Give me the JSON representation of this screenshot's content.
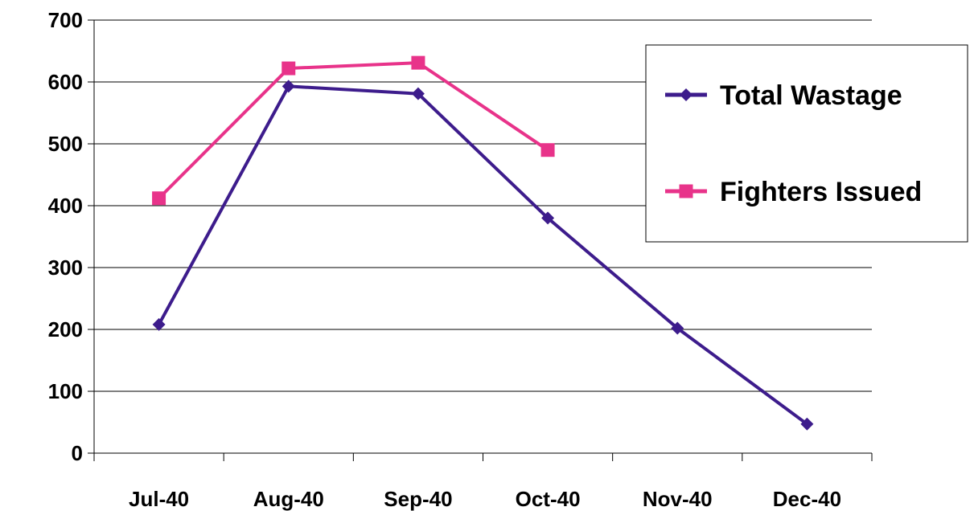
{
  "chart_data": {
    "type": "line",
    "categories": [
      "Jul-40",
      "Aug-40",
      "Sep-40",
      "Oct-40",
      "Nov-40",
      "Dec-40"
    ],
    "series": [
      {
        "name": "Total Wastage",
        "values": [
          208,
          593,
          581,
          380,
          202,
          47
        ],
        "color": "#3d1c8c",
        "marker": "diamond"
      },
      {
        "name": "Fighters Issued",
        "values": [
          412,
          622,
          631,
          490,
          null,
          null
        ],
        "color": "#e8338a",
        "marker": "square"
      }
    ],
    "title": "",
    "xlabel": "",
    "ylabel": "",
    "ylim": [
      0,
      700
    ],
    "yticks": [
      0,
      100,
      200,
      300,
      400,
      500,
      600,
      700
    ],
    "grid": true,
    "legend": "right"
  }
}
